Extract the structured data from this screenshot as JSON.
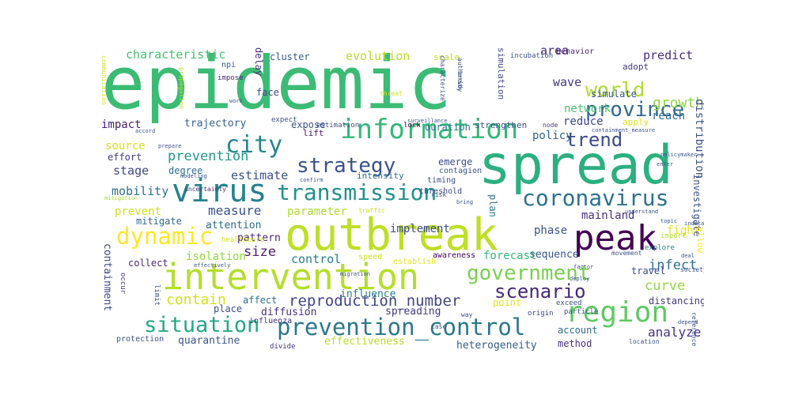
{
  "word_cloud": {
    "words": [
      {
        "text": "epidemic",
        "color": "#3cbb75",
        "vertical": false
      },
      {
        "text": "spread",
        "color": "#2bb07f",
        "vertical": false
      },
      {
        "text": "outbreak",
        "color": "#bddf26",
        "vertical": false
      },
      {
        "text": "intervention",
        "color": "#b5de2b",
        "vertical": false
      },
      {
        "text": "virus",
        "color": "#26828e",
        "vertical": false
      },
      {
        "text": "information",
        "color": "#35b779",
        "vertical": false
      },
      {
        "text": "peak",
        "color": "#440154",
        "vertical": false
      },
      {
        "text": "region",
        "color": "#5ec962",
        "vertical": false
      },
      {
        "text": "transmission",
        "color": "#21918c",
        "vertical": false
      },
      {
        "text": "coronavirus",
        "color": "#2c728e",
        "vertical": false
      },
      {
        "text": "prevention_control",
        "color": "#2a788e",
        "vertical": false
      },
      {
        "text": "situation",
        "color": "#22a884",
        "vertical": false
      },
      {
        "text": "government",
        "color": "#7ad151",
        "vertical": false
      },
      {
        "text": "strategy",
        "color": "#3b528b",
        "vertical": false
      },
      {
        "text": "city",
        "color": "#25858e",
        "vertical": false
      },
      {
        "text": "dynamic",
        "color": "#fde725",
        "vertical": false
      },
      {
        "text": "province",
        "color": "#31688e",
        "vertical": false
      },
      {
        "text": "scenario",
        "color": "#482878",
        "vertical": false
      },
      {
        "text": "world",
        "color": "#addc30",
        "vertical": false
      },
      {
        "text": "trend",
        "color": "#3e4a89",
        "vertical": false
      },
      {
        "text": "reproduction_number",
        "color": "#414487",
        "vertical": false
      },
      {
        "text": "contain",
        "color": "#d2e21b",
        "vertical": false
      },
      {
        "text": "growth",
        "color": "#8fd744",
        "vertical": false
      },
      {
        "text": "prevention",
        "color": "#1f998a",
        "vertical": false
      },
      {
        "text": "measure",
        "color": "#3b528b",
        "vertical": false
      },
      {
        "text": "curve",
        "color": "#95d840",
        "vertical": false
      },
      {
        "text": "analyze",
        "color": "#46337f",
        "vertical": false
      },
      {
        "text": "infect",
        "color": "#2d708e",
        "vertical": false
      },
      {
        "text": "size",
        "color": "#481f70",
        "vertical": false
      },
      {
        "text": "mobility",
        "color": "#2c728e",
        "vertical": false
      },
      {
        "text": "stage",
        "color": "#3f4788",
        "vertical": false
      },
      {
        "text": "estimate",
        "color": "#3b528b",
        "vertical": false
      },
      {
        "text": "wave",
        "color": "#443983",
        "vertical": false
      },
      {
        "text": "predict",
        "color": "#472d7b",
        "vertical": false
      },
      {
        "text": "evolution",
        "color": "#b8de29",
        "vertical": false
      },
      {
        "text": "characteristic",
        "color": "#46c06f",
        "vertical": false
      },
      {
        "text": "network",
        "color": "#4ac16d",
        "vertical": false
      },
      {
        "text": "reduce",
        "color": "#404588",
        "vertical": false
      },
      {
        "text": "policy",
        "color": "#32658e",
        "vertical": false
      },
      {
        "text": "area",
        "color": "#472c7a",
        "vertical": false
      },
      {
        "text": "implement",
        "color": "#3e4989",
        "vertical": false
      },
      {
        "text": "parameter",
        "color": "#addc30",
        "vertical": false
      },
      {
        "text": "prevent",
        "color": "#cde11d",
        "vertical": false
      },
      {
        "text": "mainland",
        "color": "#46327e",
        "vertical": false
      },
      {
        "text": "phase",
        "color": "#3b528b",
        "vertical": false
      },
      {
        "text": "control",
        "color": "#287c8e",
        "vertical": false
      },
      {
        "text": "reach",
        "color": "#306a8e",
        "vertical": false
      },
      {
        "text": "impact",
        "color": "#482173",
        "vertical": false
      },
      {
        "text": "source",
        "color": "#d8e219",
        "vertical": false
      },
      {
        "text": "trajectory",
        "color": "#33638d",
        "vertical": false
      },
      {
        "text": "fight",
        "color": "#e5e419",
        "vertical": false
      },
      {
        "text": "distribution",
        "color": "#3b528b",
        "vertical": true
      },
      {
        "text": "containment",
        "color": "#404688",
        "vertical": true
      },
      {
        "text": "pattern",
        "color": "#482475",
        "vertical": false
      },
      {
        "text": "attention",
        "color": "#2f6c8e",
        "vertical": false
      },
      {
        "text": "sequence",
        "color": "#39568c",
        "vertical": false
      },
      {
        "text": "forecast",
        "color": "#33b679",
        "vertical": false
      },
      {
        "text": "isolation",
        "color": "#95d840",
        "vertical": false
      },
      {
        "text": "quarantine",
        "color": "#3a548c",
        "vertical": false
      },
      {
        "text": "effectiveness",
        "color": "#bade28",
        "vertical": false
      },
      {
        "text": "heterogeneity",
        "color": "#355f8d",
        "vertical": false
      },
      {
        "text": "method",
        "color": "#46327e",
        "vertical": false
      },
      {
        "text": "account",
        "color": "#2f6b8e",
        "vertical": false
      },
      {
        "text": "travel",
        "color": "#3e4a89",
        "vertical": false
      },
      {
        "text": "distancing",
        "color": "#453781",
        "vertical": false
      },
      {
        "text": "spreading",
        "color": "#443b84",
        "vertical": false
      },
      {
        "text": "diffusion",
        "color": "#46327e",
        "vertical": false
      },
      {
        "text": "influence",
        "color": "#287d8e",
        "vertical": false
      },
      {
        "text": "place",
        "color": "#3c4f8a",
        "vertical": false
      },
      {
        "text": "affect",
        "color": "#2d708e",
        "vertical": false
      },
      {
        "text": "collect",
        "color": "#482979",
        "vertical": false
      },
      {
        "text": "mitigate",
        "color": "#31668e",
        "vertical": false
      },
      {
        "text": "effort",
        "color": "#453882",
        "vertical": false
      },
      {
        "text": "degree",
        "color": "#2e6d8e",
        "vertical": false
      },
      {
        "text": "cluster",
        "color": "#365c8d",
        "vertical": false
      },
      {
        "text": "face",
        "color": "#3f4889",
        "vertical": false
      },
      {
        "text": "delay",
        "color": "#46327e",
        "vertical": true
      },
      {
        "text": "expose",
        "color": "#3b528b",
        "vertical": false
      },
      {
        "text": "lift",
        "color": "#481467",
        "vertical": false
      },
      {
        "text": "emerge",
        "color": "#3c4f8a",
        "vertical": false
      },
      {
        "text": "duration",
        "color": "#2c738e",
        "vertical": false
      },
      {
        "text": "strengthen",
        "color": "#3d4e8a",
        "vertical": false
      },
      {
        "text": "investigate",
        "color": "#3b528b",
        "vertical": true
      },
      {
        "text": "plan",
        "color": "#2a788e",
        "vertical": true
      },
      {
        "text": "simulate",
        "color": "#3b528b",
        "vertical": false
      },
      {
        "text": "simulation",
        "color": "#414487",
        "vertical": true
      },
      {
        "text": "scale",
        "color": "#b8de29",
        "vertical": false
      },
      {
        "text": "adopt",
        "color": "#453781",
        "vertical": false
      },
      {
        "text": "apply",
        "color": "#e0e318",
        "vertical": false
      },
      {
        "text": "behavior",
        "color": "#482475",
        "vertical": false
      },
      {
        "text": "incubation",
        "color": "#3b528b",
        "vertical": false
      },
      {
        "text": "npi",
        "color": "#39568c",
        "vertical": false
      },
      {
        "text": "impose",
        "color": "#482878",
        "vertical": false
      },
      {
        "text": "intensity",
        "color": "#31688e",
        "vertical": false
      },
      {
        "text": "contagion",
        "color": "#3b528b",
        "vertical": false
      },
      {
        "text": "timing",
        "color": "#3e4a89",
        "vertical": false
      },
      {
        "text": "threshold",
        "color": "#404588",
        "vertical": false
      },
      {
        "text": "lock",
        "color": "#440154",
        "vertical": false
      },
      {
        "text": "estimation",
        "color": "#3b528b",
        "vertical": false
      },
      {
        "text": "expect",
        "color": "#3b528b",
        "vertical": false
      },
      {
        "text": "speed",
        "color": "#cde11d",
        "vertical": false
      },
      {
        "text": "establish",
        "color": "#e5e419",
        "vertical": false
      },
      {
        "text": "awareness",
        "color": "#440154",
        "vertical": false
      },
      {
        "text": "healthcare",
        "color": "#d2e21b",
        "vertical": false
      },
      {
        "text": "influenza",
        "color": "#46327e",
        "vertical": false
      },
      {
        "text": "point",
        "color": "#e5e419",
        "vertical": false
      },
      {
        "text": "exceed",
        "color": "#3b528b",
        "vertical": false
      },
      {
        "text": "particle",
        "color": "#3b528b",
        "vertical": false
      },
      {
        "text": "origin",
        "color": "#414487",
        "vertical": false
      },
      {
        "text": "divide",
        "color": "#46327e",
        "vertical": false
      },
      {
        "text": "protection",
        "color": "#3b528b",
        "vertical": false
      },
      {
        "text": "limit",
        "color": "#3b528b",
        "vertical": true
      },
      {
        "text": "occur",
        "color": "#46327e",
        "vertical": true
      },
      {
        "text": "allow",
        "color": "#fde725",
        "vertical": true
      },
      {
        "text": "communication",
        "color": "#d2e21b",
        "vertical": true
      },
      {
        "text": "characterize",
        "color": "#3b528b",
        "vertical": true
      },
      {
        "text": "authority",
        "color": "#3b528b",
        "vertical": true
      },
      {
        "text": "import",
        "color": "#b5de2b",
        "vertical": false
      },
      {
        "text": "explore",
        "color": "#2a788e",
        "vertical": false
      },
      {
        "text": "movement",
        "color": "#3b528b",
        "vertical": false
      },
      {
        "text": "society",
        "color": "#3b528b",
        "vertical": false
      },
      {
        "text": "depend",
        "color": "#3b528b",
        "vertical": false
      },
      {
        "text": "reference",
        "color": "#3b528b",
        "vertical": true
      },
      {
        "text": "location",
        "color": "#3b528b",
        "vertical": false
      },
      {
        "text": "topic",
        "color": "#3b528b",
        "vertical": false
      },
      {
        "text": "indicate",
        "color": "#3b528b",
        "vertical": false
      },
      {
        "text": "deal",
        "color": "#3b528b",
        "vertical": false
      },
      {
        "text": "containment_measure",
        "color": "#3b528b",
        "vertical": false
      },
      {
        "text": "surveillance",
        "color": "#3b528b",
        "vertical": false
      },
      {
        "text": "threat",
        "color": "#cde11d",
        "vertical": false
      },
      {
        "text": "modeling",
        "color": "#3b528b",
        "vertical": false
      },
      {
        "text": "uncertainty",
        "color": "#46327e",
        "vertical": false
      },
      {
        "text": "mitigation",
        "color": "#addc30",
        "vertical": false
      },
      {
        "text": "prepare",
        "color": "#3b528b",
        "vertical": false
      },
      {
        "text": "accord",
        "color": "#3b528b",
        "vertical": false
      },
      {
        "text": "node",
        "color": "#46327e",
        "vertical": false
      },
      {
        "text": "confirm",
        "color": "#3b528b",
        "vertical": false
      },
      {
        "text": "migration",
        "color": "#3b528b",
        "vertical": false
      },
      {
        "text": "traffic",
        "color": "#cde11d",
        "vertical": false
      },
      {
        "text": "risk",
        "color": "#3b528b",
        "vertical": false
      },
      {
        "text": "bring",
        "color": "#3b528b",
        "vertical": false
      },
      {
        "text": "work",
        "color": "#3b528b",
        "vertical": false
      },
      {
        "text": "effectively",
        "color": "#3b528b",
        "vertical": false
      },
      {
        "text": "propagation",
        "color": "#b5de2b",
        "vertical": true
      },
      {
        "text": "break",
        "color": "#3b528b",
        "vertical": true
      },
      {
        "text": "policymaker",
        "color": "#3b528b",
        "vertical": false
      },
      {
        "text": "enter",
        "color": "#3b528b",
        "vertical": false
      },
      {
        "text": "understand",
        "color": "#3b528b",
        "vertical": false
      },
      {
        "text": "factor",
        "color": "#3b528b",
        "vertical": false
      },
      {
        "text": "deploy",
        "color": "#3b528b",
        "vertical": false
      },
      {
        "text": "case",
        "color": "#3b528b",
        "vertical": false
      },
      {
        "text": "way",
        "color": "#3b528b",
        "vertical": false
      }
    ]
  }
}
